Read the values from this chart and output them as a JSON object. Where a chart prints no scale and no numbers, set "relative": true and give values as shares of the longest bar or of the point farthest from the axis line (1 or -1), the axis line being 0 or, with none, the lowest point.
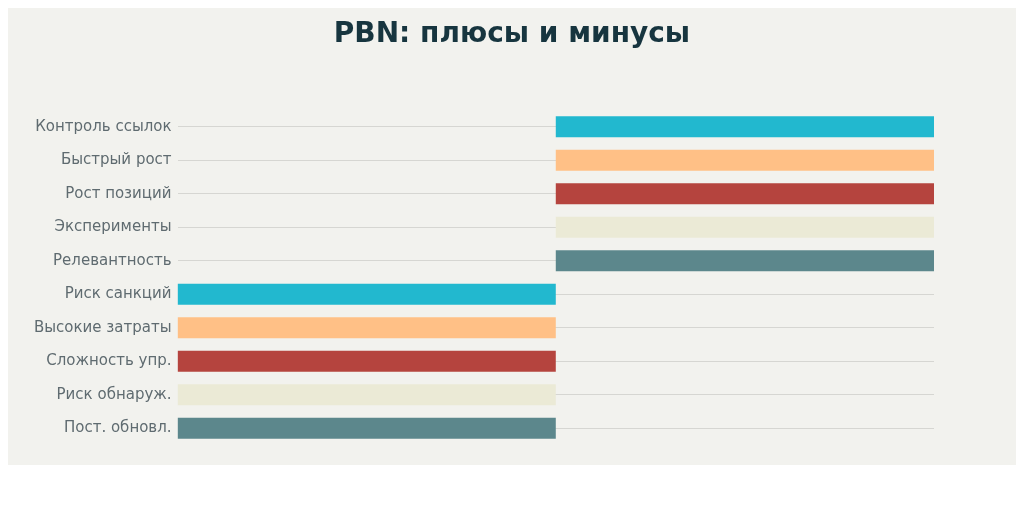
{
  "chart_data": {
    "type": "bar",
    "title": "PBN: плюсы и минусы",
    "orientation": "horizontal",
    "relative": true,
    "grid": "y",
    "legend": false,
    "categories": [
      "Контроль ссылок",
      "Быстрый рост",
      "Рост позиций",
      "Эксперименты",
      "Релевантность",
      "Риск санкций",
      "Высокие затраты",
      "Сложность упр.",
      "Риск обнаруж.",
      "Пост. обновл."
    ],
    "values": [
      1,
      1,
      1,
      1,
      1,
      -1,
      -1,
      -1,
      -1,
      -1
    ],
    "colors": [
      "#22b8cf",
      "#ffc086",
      "#b5443e",
      "#ebead6",
      "#5c878c",
      "#22b8cf",
      "#ffc086",
      "#b5443e",
      "#ebead6",
      "#5c878c"
    ]
  }
}
